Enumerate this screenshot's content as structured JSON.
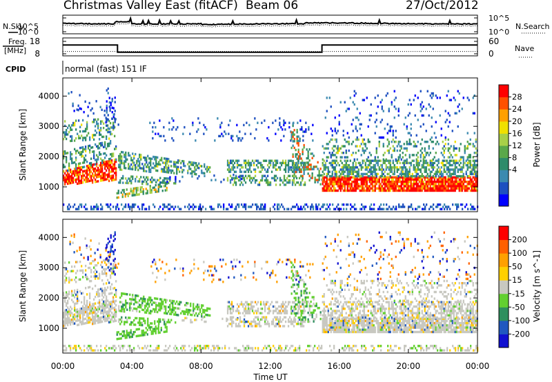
{
  "header": {
    "title": "Christmas Valley East (fitACF)",
    "beam": "Beam 06",
    "date": "27/Oct/2012",
    "n_sky_label": "N.Sky",
    "n_search_label": "N.Search",
    "freq_label_line1": "Freq.",
    "freq_label_line2": "[MHz]",
    "nave_label": "Nave",
    "cpid_label": "CPID",
    "cpid_value": "normal (fast) 151 IF"
  },
  "chart_data": [
    {
      "type": "line",
      "name": "noise-panel",
      "left_ticks": [
        "10^5",
        "10^0"
      ],
      "right_ticks": [
        "10^5",
        "10^0"
      ],
      "left_label": "N.Sky",
      "right_label": "N.Search"
    },
    {
      "type": "line",
      "name": "frequency-panel",
      "left_ticks": [
        "18",
        "8"
      ],
      "right_ticks": [
        "60",
        "0"
      ],
      "freq_steps": [
        {
          "from": "00:00",
          "to": "03:10",
          "value": 15.5
        },
        {
          "from": "03:10",
          "to": "15:00",
          "value": 10.5
        },
        {
          "from": "15:00",
          "to": "24:00",
          "value": 15.5
        }
      ],
      "nave_level": 16
    },
    {
      "type": "heatmap",
      "name": "power",
      "ylabel": "Slant Range [km]",
      "y_ticks": [
        "4000",
        "3000",
        "2000",
        "1000"
      ],
      "ylim": [
        180,
        4600
      ],
      "colorbar_label": "Power [dB]",
      "colorbar_ticks": [
        "28",
        "24",
        "20",
        "16",
        "12",
        "8",
        "4"
      ],
      "colorbar_colors": [
        "#0000ff",
        "#1e50c0",
        "#3c8ab0",
        "#2e8b6a",
        "#5aa84a",
        "#a8d048",
        "#f0e000",
        "#ffa000",
        "#ff5000",
        "#ff0000"
      ]
    },
    {
      "type": "heatmap",
      "name": "velocity",
      "ylabel": "Slant Range [km]",
      "y_ticks": [
        "4000",
        "3000",
        "2000",
        "1000"
      ],
      "ylim": [
        180,
        4600
      ],
      "colorbar_label": "Velocity [m s^-1]",
      "colorbar_ticks": [
        "200",
        "100",
        "50",
        "15",
        "-15",
        "-50",
        "-100",
        "-200"
      ],
      "colorbar_colors": [
        "#1010d0",
        "#2058c0",
        "#2e8f5e",
        "#62d030",
        "#c8c8c0",
        "#ffd000",
        "#ffa000",
        "#ff6000",
        "#ff0000"
      ]
    }
  ],
  "x_axis": {
    "ticks": [
      "00:00",
      "04:00",
      "08:00",
      "12:00",
      "16:00",
      "20:00",
      "00:00"
    ],
    "xlabel": "Time UT"
  }
}
